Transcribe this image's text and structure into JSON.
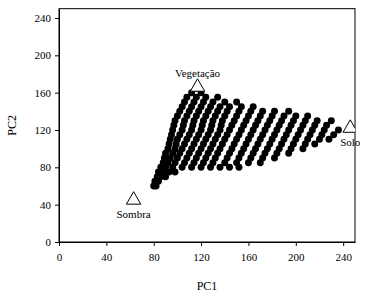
{
  "chart_data": {
    "type": "scatter",
    "xlabel": "PC1",
    "ylabel": "PC2",
    "color": "#000000",
    "marker": "circle",
    "xlim": [
      0,
      250
    ],
    "ylim": [
      0,
      250
    ],
    "xticks": [
      0,
      40,
      80,
      120,
      160,
      200,
      240
    ],
    "yticks": [
      0,
      40,
      80,
      120,
      160,
      200,
      240
    ],
    "grid": false,
    "x": [
      80,
      82,
      81,
      84,
      83,
      86,
      90,
      84,
      88,
      93,
      98,
      86,
      90,
      96,
      104,
      112,
      120,
      128,
      136,
      144,
      152,
      88,
      92,
      98,
      106,
      114,
      122,
      130,
      140,
      150,
      160,
      170,
      89,
      94,
      100,
      108,
      116,
      124,
      132,
      142,
      152,
      162,
      172,
      182,
      90,
      96,
      102,
      110,
      118,
      126,
      134,
      144,
      154,
      164,
      174,
      184,
      194,
      92,
      98,
      104,
      112,
      120,
      128,
      136,
      146,
      156,
      166,
      176,
      186,
      196,
      206,
      93,
      99,
      106,
      114,
      122,
      130,
      138,
      148,
      158,
      168,
      178,
      188,
      198,
      208,
      216,
      94,
      100,
      108,
      116,
      124,
      132,
      140,
      150,
      160,
      170,
      180,
      190,
      200,
      210,
      220,
      228,
      95,
      102,
      110,
      118,
      126,
      134,
      142,
      152,
      162,
      172,
      182,
      192,
      202,
      212,
      222,
      232,
      96,
      104,
      112,
      120,
      128,
      136,
      144,
      154,
      164,
      174,
      184,
      194,
      204,
      214,
      224,
      236,
      97,
      105,
      113,
      121,
      129,
      137,
      146,
      156,
      166,
      176,
      186,
      196,
      206,
      216,
      226,
      98,
      106,
      114,
      122,
      130,
      138,
      148,
      158,
      168,
      178,
      188,
      198,
      208,
      218,
      230,
      100,
      108,
      116,
      124,
      132,
      140,
      150,
      160,
      170,
      180,
      190,
      200,
      210,
      102,
      110,
      118,
      126,
      134,
      142,
      152,
      162,
      172,
      182,
      194,
      104,
      112,
      120,
      128,
      136,
      144,
      154,
      164,
      106,
      114,
      122,
      130,
      140,
      150,
      108,
      116,
      124,
      134,
      112,
      120,
      116
    ],
    "values": [
      60,
      60,
      65,
      65,
      70,
      70,
      70,
      75,
      75,
      75,
      75,
      80,
      80,
      80,
      80,
      80,
      80,
      80,
      80,
      80,
      80,
      85,
      85,
      85,
      85,
      85,
      85,
      85,
      85,
      85,
      85,
      85,
      90,
      90,
      90,
      90,
      90,
      90,
      90,
      90,
      90,
      90,
      90,
      90,
      95,
      95,
      95,
      95,
      95,
      95,
      95,
      95,
      95,
      95,
      95,
      95,
      95,
      100,
      100,
      100,
      100,
      100,
      100,
      100,
      100,
      100,
      100,
      100,
      100,
      100,
      100,
      105,
      105,
      105,
      105,
      105,
      105,
      105,
      105,
      105,
      105,
      105,
      105,
      105,
      105,
      105,
      110,
      110,
      110,
      110,
      110,
      110,
      110,
      110,
      110,
      110,
      110,
      110,
      110,
      110,
      110,
      110,
      115,
      115,
      115,
      115,
      115,
      115,
      115,
      115,
      115,
      115,
      115,
      115,
      115,
      115,
      115,
      115,
      120,
      120,
      120,
      120,
      120,
      120,
      120,
      120,
      120,
      120,
      120,
      120,
      120,
      120,
      120,
      120,
      125,
      125,
      125,
      125,
      125,
      125,
      125,
      125,
      125,
      125,
      125,
      125,
      125,
      125,
      125,
      130,
      130,
      130,
      130,
      130,
      130,
      130,
      130,
      130,
      130,
      130,
      130,
      130,
      130,
      130,
      135,
      135,
      135,
      135,
      135,
      135,
      135,
      135,
      135,
      135,
      135,
      135,
      135,
      140,
      140,
      140,
      140,
      140,
      140,
      140,
      140,
      140,
      140,
      140,
      145,
      145,
      145,
      145,
      145,
      145,
      145,
      145,
      150,
      150,
      150,
      150,
      150,
      150,
      155,
      155,
      155,
      155,
      160,
      160,
      165
    ],
    "annotations": [
      {
        "text": "Vegetação",
        "x": 117,
        "y": 166
      },
      {
        "text": "Solo",
        "x": 246,
        "y": 122
      },
      {
        "text": "Sombra",
        "x": 63,
        "y": 45
      }
    ]
  }
}
